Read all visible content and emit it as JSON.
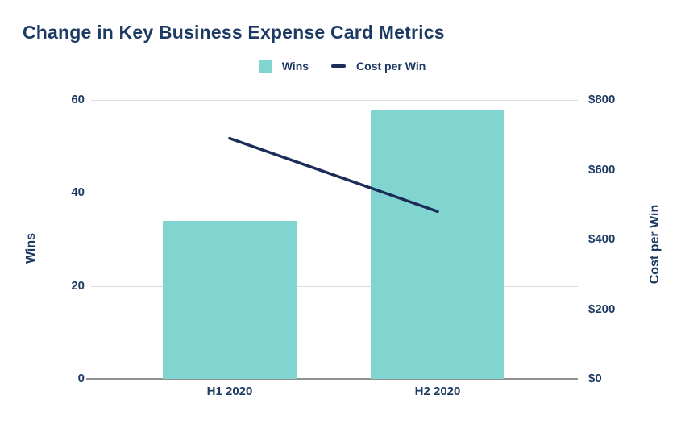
{
  "title": "Change in Key Business Expense Card Metrics",
  "legend": [
    {
      "label": "Wins",
      "marker": "square-swatch",
      "color": "#80d5d0"
    },
    {
      "label": "Cost per Win",
      "marker": "dash-swatch",
      "color": "#1b2c58"
    }
  ],
  "chart_data": {
    "type": "bar",
    "subtype": "bar-and-line-combo",
    "title": "Change in Key Business Expense Card Metrics",
    "categories": [
      "H1 2020",
      "H2 2020"
    ],
    "series": [
      {
        "name": "Wins",
        "type": "bar",
        "axis": "left",
        "values": [
          34,
          58
        ],
        "color": "#80d5d0"
      },
      {
        "name": "Cost per Win",
        "type": "line",
        "axis": "right",
        "values": [
          690,
          480
        ],
        "color": "#1b2c58"
      }
    ],
    "left_axis": {
      "label": "Wins",
      "range": [
        0,
        60
      ],
      "ticks": [
        0,
        20,
        40,
        60
      ]
    },
    "right_axis": {
      "label": "Cost per Win",
      "range": [
        0,
        800
      ],
      "tick_values": [
        0,
        200,
        400,
        600,
        800
      ],
      "tick_labels": [
        "$0",
        "$200",
        "$400",
        "$600",
        "$800"
      ]
    },
    "grid": "horizontal-on",
    "legend_position": "top-center"
  },
  "colors": {
    "bar": "#80d5d0",
    "line": "#1b2c58",
    "text": "#1d3a63",
    "gridline": "#dcdcdc",
    "axis_line": "#8f8f8f",
    "background": "#ffffff"
  }
}
